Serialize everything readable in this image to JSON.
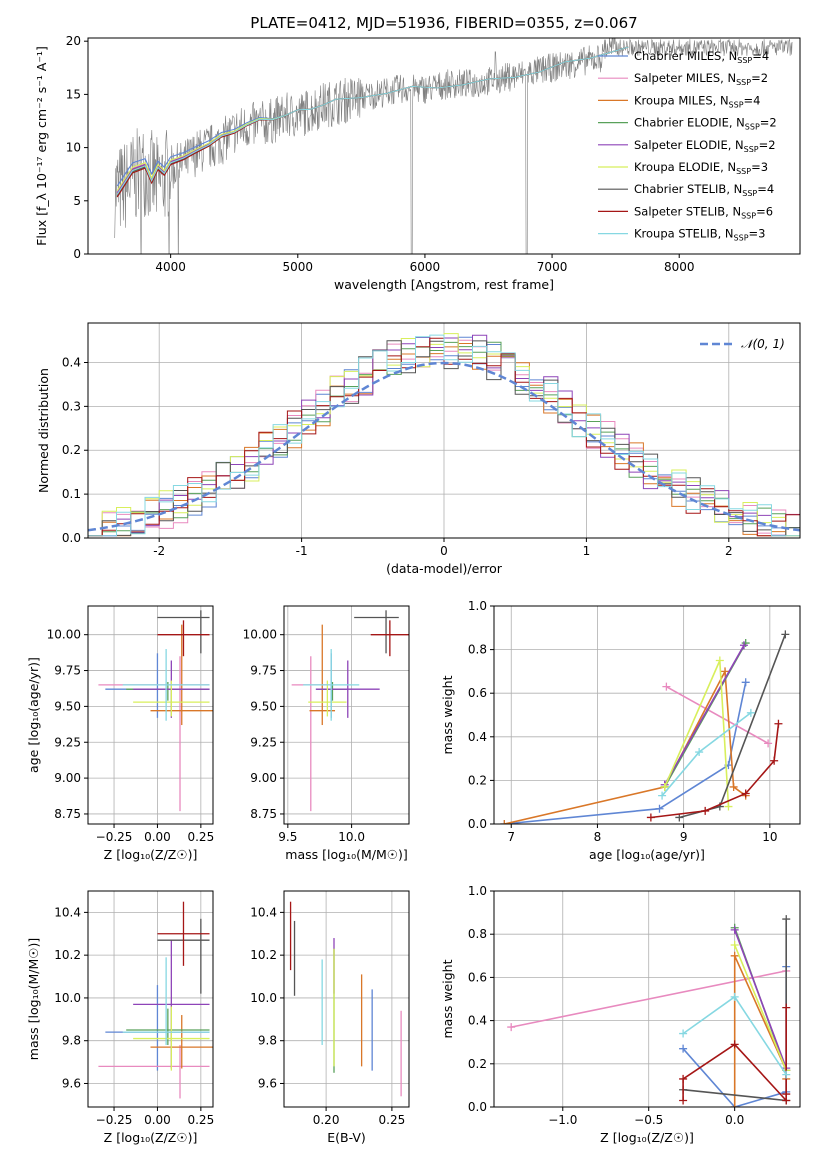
{
  "figure": {
    "title": "PLATE=0412, MJD=51936, FIBERID=0355, z=0.067"
  },
  "models": [
    {
      "label": "Chabrier MILES, N",
      "n": "4",
      "color": "#5f86d4"
    },
    {
      "label": "Salpeter MILES, N",
      "n": "2",
      "color": "#e88abf"
    },
    {
      "label": "Kroupa MILES, N",
      "n": "4",
      "color": "#d97728"
    },
    {
      "label": "Chabrier ELODIE, N",
      "n": "2",
      "color": "#59a15a"
    },
    {
      "label": "Salpeter ELODIE, N",
      "n": "2",
      "color": "#8e44b8"
    },
    {
      "label": "Kroupa ELODIE, N",
      "n": "3",
      "color": "#d8ef5c"
    },
    {
      "label": "Chabrier STELIB, N",
      "n": "4",
      "color": "#555555"
    },
    {
      "label": "Salpeter STELIB, N",
      "n": "6",
      "color": "#a51616"
    },
    {
      "label": "Kroupa STELIB, N",
      "n": "3",
      "color": "#86d8e2"
    }
  ],
  "chart_data": [
    {
      "id": "spectrum",
      "type": "line",
      "xlabel": "wavelength [Angstrom, rest frame]",
      "ylabel": "Flux [f_λ 10⁻¹⁷ erg cm⁻² s⁻¹ A⁻¹]",
      "xlim": [
        3350,
        8950
      ],
      "ylim": [
        0,
        20.3
      ],
      "xticks": [
        4000,
        5000,
        6000,
        7000,
        8000
      ],
      "yticks": [
        0,
        5,
        10,
        15,
        20
      ],
      "data_color": "#808080",
      "data_x": [
        3600,
        3700,
        3800,
        3900,
        4000,
        4100,
        4200,
        4300,
        4400,
        4500,
        4600,
        4700,
        4800,
        4900,
        5000,
        5200,
        5400,
        5600,
        5800,
        6000,
        6200,
        6400,
        6600,
        6800,
        7000,
        7200,
        7400
      ],
      "data_y": [
        6,
        7,
        8,
        6.5,
        8,
        8.5,
        9.5,
        10,
        10.5,
        11.5,
        12,
        12.2,
        12.5,
        13,
        13,
        14,
        14.5,
        15,
        15.5,
        15.5,
        16,
        16,
        16.5,
        17,
        17.5,
        18,
        18.5
      ],
      "model_x": [
        3580,
        3700,
        3800,
        3850,
        3900,
        3950,
        4000,
        4100,
        4200,
        4300,
        4400,
        4500,
        4600,
        4700,
        4800,
        4900,
        5000,
        5100,
        5200,
        5300,
        5500,
        5700,
        5900,
        6100,
        6300,
        6500,
        6700,
        6900,
        7100,
        7300,
        7500,
        7600
      ],
      "model_y": [
        5.5,
        7.5,
        8.2,
        6.8,
        7.8,
        7.5,
        8.5,
        8.7,
        9.6,
        10.2,
        10.8,
        11.4,
        12.1,
        12.4,
        12.6,
        13.0,
        13.3,
        13.6,
        14.0,
        14.3,
        14.7,
        15.1,
        15.5,
        15.6,
        15.9,
        16.2,
        16.6,
        17.1,
        17.8,
        18.4,
        19.1,
        19.2
      ],
      "model_offsets": [
        0.9,
        0.3,
        0.15,
        -0.1,
        0.25,
        0.45,
        0,
        -0.15,
        0.1
      ]
    },
    {
      "id": "residuals",
      "type": "histogram",
      "xlabel": "(data-model)/error",
      "ylabel": "Normed distribution",
      "xlim": [
        -2.5,
        2.5
      ],
      "ylim": [
        0,
        0.49
      ],
      "xticks": [
        -2,
        -1,
        0,
        1,
        2
      ],
      "yticks": [
        0.0,
        0.1,
        0.2,
        0.3,
        0.4
      ],
      "reference_label": "𝒩(0, 1)",
      "reference_color": "#5f86d4",
      "bin_width": 0.1
    },
    {
      "id": "age-vs-Z",
      "type": "scatter",
      "xlabel": "Z [log₁₀(Z/Z☉)]",
      "ylabel": "age  [log₁₀(age/yr)]",
      "xlim": [
        -0.4,
        0.32
      ],
      "ylim": [
        8.68,
        10.2
      ],
      "xticks": [
        -0.25,
        0.0,
        0.25
      ],
      "xticklabels": [
        "−0.25",
        "0.00",
        "0.25"
      ],
      "yticks": [
        8.75,
        9.0,
        9.25,
        9.5,
        9.75,
        10.0
      ],
      "points": [
        {
          "x": 0.0,
          "xerr": [
            0.3,
            0.3
          ],
          "y": 9.62,
          "yerr": [
            0.2,
            0.25
          ]
        },
        {
          "x": 0.13,
          "xerr": [
            0.47,
            0.17
          ],
          "y": 9.65,
          "yerr": [
            0.88,
            0.2
          ]
        },
        {
          "x": 0.14,
          "xerr": [
            0.18,
            0.18
          ],
          "y": 9.47,
          "yerr": [
            0.1,
            0.6
          ]
        },
        {
          "x": 0.06,
          "xerr": [
            0.24,
            0.24
          ],
          "y": 9.62,
          "yerr": [
            0.08,
            0.05
          ]
        },
        {
          "x": 0.08,
          "xerr": [
            0.22,
            0.22
          ],
          "y": 9.62,
          "yerr": [
            0.2,
            0.2
          ]
        },
        {
          "x": 0.08,
          "xerr": [
            0.22,
            0.22
          ],
          "y": 9.53,
          "yerr": [
            0.1,
            0.15
          ]
        },
        {
          "x": 0.25,
          "xerr": [
            0.25,
            0.05
          ],
          "y": 10.12,
          "yerr": [
            0.25,
            0.05
          ]
        },
        {
          "x": 0.15,
          "xerr": [
            0.15,
            0.15
          ],
          "y": 10.0,
          "yerr": [
            0.15,
            0.1
          ]
        },
        {
          "x": 0.05,
          "xerr": [
            0.25,
            0.25
          ],
          "y": 9.65,
          "yerr": [
            0.25,
            0.25
          ]
        }
      ]
    },
    {
      "id": "age-vs-mass",
      "type": "scatter",
      "xlabel": "mass [log₁₀(M/M☉)]",
      "ylabel": "",
      "xlim": [
        9.47,
        10.45
      ],
      "ylim": [
        8.68,
        10.2
      ],
      "xticks": [
        9.5,
        10.0
      ],
      "xticklabels": [
        "9.5",
        "10.0"
      ],
      "yticks": [
        8.75,
        9.0,
        9.25,
        9.5,
        9.75,
        10.0
      ],
      "points": [
        {
          "x": 9.84,
          "xerr": [
            0.12,
            0.12
          ],
          "y": 9.62,
          "yerr": [
            0.2,
            0.25
          ]
        },
        {
          "x": 9.68,
          "xerr": [
            0.15,
            0.15
          ],
          "y": 9.65,
          "yerr": [
            0.88,
            0.2
          ]
        },
        {
          "x": 9.77,
          "xerr": [
            0.1,
            0.1
          ],
          "y": 9.47,
          "yerr": [
            0.1,
            0.6
          ]
        },
        {
          "x": 9.85,
          "xerr": [
            0.12,
            0.12
          ],
          "y": 9.62,
          "yerr": [
            0.08,
            0.05
          ]
        },
        {
          "x": 9.97,
          "xerr": [
            0.25,
            0.25
          ],
          "y": 9.62,
          "yerr": [
            0.2,
            0.2
          ]
        },
        {
          "x": 9.81,
          "xerr": [
            0.15,
            0.15
          ],
          "y": 9.53,
          "yerr": [
            0.1,
            0.15
          ]
        },
        {
          "x": 10.27,
          "xerr": [
            0.25,
            0.1
          ],
          "y": 10.12,
          "yerr": [
            0.25,
            0.05
          ]
        },
        {
          "x": 10.3,
          "xerr": [
            0.15,
            0.15
          ],
          "y": 10.0,
          "yerr": [
            0.15,
            0.1
          ]
        },
        {
          "x": 9.84,
          "xerr": [
            0.22,
            0.22
          ],
          "y": 9.65,
          "yerr": [
            0.25,
            0.25
          ]
        }
      ]
    },
    {
      "id": "weight-vs-age",
      "type": "line",
      "xlabel": "age  [log₁₀(age/yr)]",
      "ylabel": "mass weight",
      "xlim": [
        6.8,
        10.35
      ],
      "ylim": [
        0,
        1.0
      ],
      "xticks": [
        7,
        8,
        9,
        10
      ],
      "yticks": [
        0.0,
        0.2,
        0.4,
        0.6,
        0.8,
        1.0
      ],
      "series": [
        {
          "x": [
            6.92,
            8.72,
            9.52,
            9.72
          ],
          "y": [
            0.0,
            0.07,
            0.27,
            0.65
          ]
        },
        {
          "x": [
            8.8,
            9.98
          ],
          "y": [
            0.63,
            0.37
          ]
        },
        {
          "x": [
            6.92,
            8.78,
            9.48,
            9.58,
            9.72
          ],
          "y": [
            0.0,
            0.17,
            0.7,
            0.17,
            0.13
          ]
        },
        {
          "x": [
            8.78,
            9.72
          ],
          "y": [
            0.17,
            0.83
          ]
        },
        {
          "x": [
            8.78,
            9.7
          ],
          "y": [
            0.18,
            0.82
          ]
        },
        {
          "x": [
            8.78,
            9.42,
            9.52
          ],
          "y": [
            0.17,
            0.75,
            0.08
          ]
        },
        {
          "x": [
            8.95,
            9.42,
            10.18
          ],
          "y": [
            0.03,
            0.08,
            0.87
          ]
        },
        {
          "x": [
            8.62,
            9.25,
            9.72,
            10.05,
            10.1
          ],
          "y": [
            0.03,
            0.06,
            0.14,
            0.29,
            0.46
          ]
        },
        {
          "x": [
            8.75,
            9.18,
            9.78
          ],
          "y": [
            0.13,
            0.33,
            0.51
          ]
        }
      ]
    },
    {
      "id": "mass-vs-Z",
      "type": "scatter",
      "xlabel": "Z [log₁₀(Z/Z☉)]",
      "ylabel": "mass [log₁₀(M/M☉)]",
      "xlim": [
        -0.4,
        0.32
      ],
      "ylim": [
        9.49,
        10.5
      ],
      "xticks": [
        -0.25,
        0.0,
        0.25
      ],
      "xticklabels": [
        "−0.25",
        "0.00",
        "0.25"
      ],
      "yticks": [
        9.6,
        9.8,
        10.0,
        10.2,
        10.4
      ],
      "points": [
        {
          "x": 0.0,
          "xerr": [
            0.3,
            0.3
          ],
          "y": 9.84,
          "yerr": [
            0.18,
            0.22
          ]
        },
        {
          "x": 0.13,
          "xerr": [
            0.47,
            0.17
          ],
          "y": 9.68,
          "yerr": [
            0.15,
            0.1
          ]
        },
        {
          "x": 0.14,
          "xerr": [
            0.18,
            0.18
          ],
          "y": 9.77,
          "yerr": [
            0.1,
            0.15
          ]
        },
        {
          "x": 0.06,
          "xerr": [
            0.24,
            0.24
          ],
          "y": 9.85,
          "yerr": [
            0.07,
            0.1
          ]
        },
        {
          "x": 0.08,
          "xerr": [
            0.22,
            0.22
          ],
          "y": 9.97,
          "yerr": [
            0.3,
            0.3
          ]
        },
        {
          "x": 0.08,
          "xerr": [
            0.22,
            0.22
          ],
          "y": 9.81,
          "yerr": [
            0.15,
            0.15
          ]
        },
        {
          "x": 0.25,
          "xerr": [
            0.25,
            0.05
          ],
          "y": 10.27,
          "yerr": [
            0.25,
            0.1
          ]
        },
        {
          "x": 0.15,
          "xerr": [
            0.15,
            0.15
          ],
          "y": 10.3,
          "yerr": [
            0.15,
            0.15
          ]
        },
        {
          "x": 0.05,
          "xerr": [
            0.25,
            0.25
          ],
          "y": 9.84,
          "yerr": [
            0.06,
            0.35
          ]
        }
      ]
    },
    {
      "id": "mass-vs-ebv",
      "type": "scatter",
      "xlabel": "E(B-V)",
      "ylabel": "",
      "xlim": [
        0.168,
        0.263
      ],
      "ylim": [
        9.49,
        10.5
      ],
      "xticks": [
        0.2,
        0.25
      ],
      "xticklabels": [
        "0.20",
        "0.25"
      ],
      "yticks": [
        9.6,
        9.8,
        10.0,
        10.2,
        10.4
      ],
      "points": [
        {
          "x": 0.235,
          "y": 9.84,
          "yerr": [
            0.18,
            0.2
          ]
        },
        {
          "x": 0.257,
          "y": 9.74,
          "yerr": [
            0.2,
            0.2
          ]
        },
        {
          "x": 0.227,
          "y": 9.89,
          "yerr": [
            0.21,
            0.22
          ]
        },
        {
          "x": 0.206,
          "y": 9.95,
          "yerr": [
            0.3,
            0.28
          ]
        },
        {
          "x": 0.206,
          "y": 10.12,
          "yerr": [
            0.1,
            0.16
          ]
        },
        {
          "x": 0.206,
          "y": 9.98,
          "yerr": [
            0.3,
            0.25
          ]
        },
        {
          "x": 0.176,
          "y": 10.18,
          "yerr": [
            0.17,
            0.18
          ]
        },
        {
          "x": 0.173,
          "y": 10.29,
          "yerr": [
            0.16,
            0.16
          ]
        },
        {
          "x": 0.197,
          "y": 9.98,
          "yerr": [
            0.2,
            0.2
          ]
        }
      ]
    },
    {
      "id": "weight-vs-Z",
      "type": "line",
      "xlabel": "Z [log₁₀(Z/Z☉)]",
      "ylabel": "mass weight",
      "xlim": [
        -1.4,
        0.38
      ],
      "ylim": [
        0,
        1.0
      ],
      "xticks": [
        -1.0,
        -0.5,
        0.0
      ],
      "xticklabels": [
        "−1.0",
        "−0.5",
        "0.0"
      ],
      "yticks": [
        0.0,
        0.2,
        0.4,
        0.6,
        0.8,
        1.0
      ],
      "series": [
        {
          "x": [
            -0.3,
            0.0,
            0.3,
            0.3
          ],
          "y": [
            0.27,
            0.0,
            0.07,
            0.65
          ]
        },
        {
          "x": [
            -1.3,
            0.3
          ],
          "y": [
            0.37,
            0.63
          ]
        },
        {
          "x": [
            0.0,
            0.0,
            0.3,
            0.3
          ],
          "y": [
            0.0,
            0.7,
            0.17,
            0.13
          ]
        },
        {
          "x": [
            0.0,
            0.3
          ],
          "y": [
            0.83,
            0.17
          ]
        },
        {
          "x": [
            0.0,
            0.3
          ],
          "y": [
            0.82,
            0.18
          ]
        },
        {
          "x": [
            0.0,
            0.3
          ],
          "y": [
            0.75,
            0.17
          ]
        },
        {
          "x": [
            -0.3,
            0.3,
            0.3
          ],
          "y": [
            0.08,
            0.03,
            0.87
          ]
        },
        {
          "x": [
            -0.3,
            -0.3,
            0.0,
            0.3,
            0.3,
            0.3
          ],
          "y": [
            0.03,
            0.13,
            0.29,
            0.03,
            0.06,
            0.46
          ]
        },
        {
          "x": [
            -0.3,
            0.0,
            0.3
          ],
          "y": [
            0.34,
            0.51,
            0.15
          ]
        }
      ]
    }
  ]
}
